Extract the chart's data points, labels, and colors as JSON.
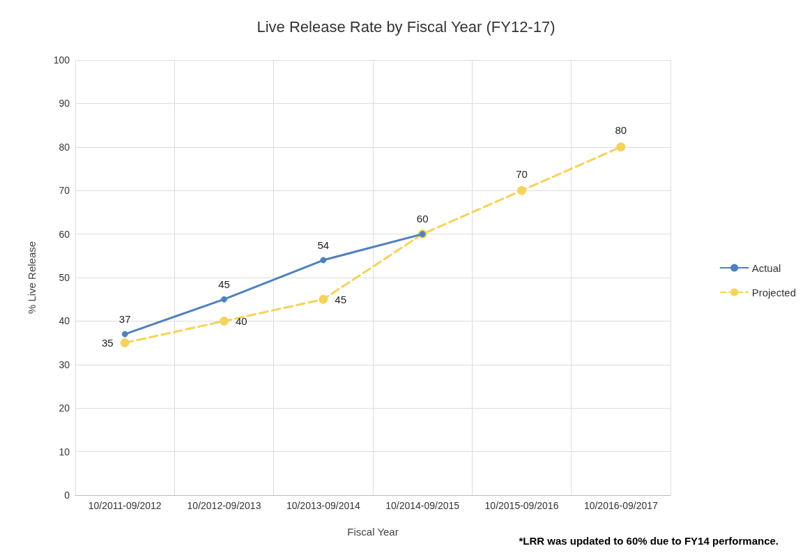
{
  "chart_data": {
    "type": "line",
    "title": "Live Release Rate by Fiscal Year (FY12-17)",
    "xlabel": "Fiscal Year",
    "ylabel": "% Live Release",
    "categories": [
      "10/2011-09/2012",
      "10/2012-09/2013",
      "10/2013-09/2014",
      "10/2014-09/2015",
      "10/2015-09/2016",
      "10/2016-09/2017"
    ],
    "series": [
      {
        "name": "Actual",
        "color": "#4f81bd",
        "values": [
          37,
          45,
          54,
          60,
          null,
          null
        ],
        "line_style": "solid",
        "value_labels": [
          "37",
          "45",
          "54",
          "60",
          null,
          null
        ]
      },
      {
        "name": "Projected",
        "color": "#f5d25c",
        "values": [
          35,
          40,
          45,
          60,
          70,
          80
        ],
        "line_style": "dashed",
        "value_labels": [
          "35",
          "40",
          "45",
          null,
          "70",
          "80"
        ]
      }
    ],
    "ylim": [
      0,
      100
    ],
    "yticks": [
      0,
      10,
      20,
      30,
      40,
      50,
      60,
      70,
      80,
      90,
      100
    ],
    "grid": true,
    "legend": "right",
    "marker": "circle",
    "annotations": [
      "*LRR was updated to 60% due to FY14 performance."
    ]
  }
}
